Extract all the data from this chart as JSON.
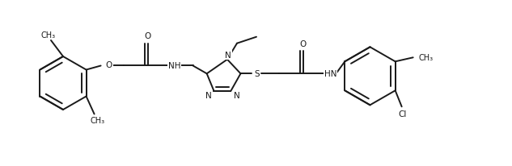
{
  "bg_color": "#ffffff",
  "line_color": "#1a1a1a",
  "line_width": 1.4,
  "font_size": 7.5,
  "figsize": [
    6.33,
    2.07
  ],
  "dpi": 100,
  "xlim": [
    0.0,
    6.33
  ],
  "ylim": [
    0.0,
    2.07
  ]
}
